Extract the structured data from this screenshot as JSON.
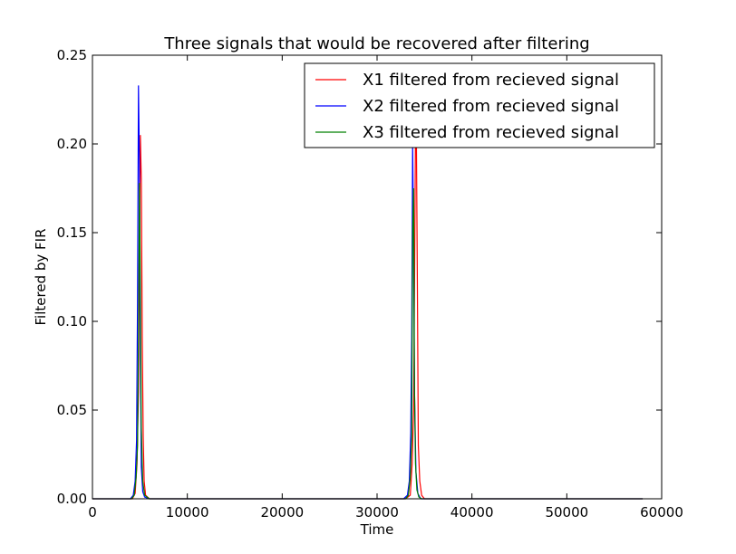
{
  "chart_data": {
    "type": "line",
    "title": "Three signals that would be recovered after filtering",
    "xlabel": "Time",
    "ylabel": "Filtered by FIR",
    "xlim": [
      0,
      60000
    ],
    "ylim": [
      0,
      0.25
    ],
    "xticks": [
      0,
      10000,
      20000,
      30000,
      40000,
      50000,
      60000
    ],
    "xtick_labels": [
      "0",
      "10000",
      "20000",
      "30000",
      "40000",
      "50000",
      "60000"
    ],
    "yticks": [
      0,
      0.05,
      0.1,
      0.15,
      0.2,
      0.25
    ],
    "ytick_labels": [
      "0.00",
      "0.05",
      "0.10",
      "0.15",
      "0.20",
      "0.25"
    ],
    "grid": false,
    "legend": "top-right",
    "series": [
      {
        "name": "X1 filtered from recieved signal",
        "color": "#ff0000",
        "x": [
          0,
          4200,
          4500,
          4700,
          4850,
          4950,
          5050,
          5150,
          5250,
          5350,
          5450,
          5600,
          6000,
          33000,
          33500,
          33700,
          33850,
          33950,
          34050,
          34150,
          34250,
          34350,
          34500,
          34700,
          35000,
          58000
        ],
        "y": [
          0,
          0,
          0.003,
          0.02,
          0.06,
          0.14,
          0.205,
          0.18,
          0.09,
          0.035,
          0.01,
          0.002,
          0,
          0,
          0.002,
          0.02,
          0.05,
          0.12,
          0.205,
          0.2,
          0.12,
          0.03,
          0.01,
          0.002,
          0,
          0
        ]
      },
      {
        "name": "X2 filtered from recieved signal",
        "color": "#0000ff",
        "x": [
          0,
          4000,
          4300,
          4500,
          4650,
          4750,
          4850,
          4950,
          5050,
          5150,
          5300,
          5500,
          6000,
          32800,
          33200,
          33400,
          33550,
          33650,
          33750,
          33850,
          33950,
          34100,
          34300,
          34600,
          58000
        ],
        "y": [
          0,
          0,
          0.002,
          0.01,
          0.033,
          0.11,
          0.233,
          0.19,
          0.08,
          0.018,
          0.004,
          0.001,
          0,
          0,
          0.002,
          0.01,
          0.037,
          0.09,
          0.2,
          0.14,
          0.06,
          0.015,
          0.003,
          0,
          0
        ]
      },
      {
        "name": "X3 filtered from recieved signal",
        "color": "#008000",
        "x": [
          0,
          4100,
          4400,
          4600,
          4750,
          4850,
          4950,
          5050,
          5150,
          5300,
          5500,
          6000,
          33000,
          33300,
          33500,
          33650,
          33750,
          33850,
          33950,
          34050,
          34200,
          34400,
          34700,
          58000
        ],
        "y": [
          0,
          0,
          0.002,
          0.012,
          0.03,
          0.09,
          0.178,
          0.12,
          0.04,
          0.01,
          0.002,
          0,
          0,
          0.002,
          0.012,
          0.035,
          0.15,
          0.175,
          0.06,
          0.02,
          0.005,
          0.001,
          0,
          0
        ]
      }
    ]
  }
}
